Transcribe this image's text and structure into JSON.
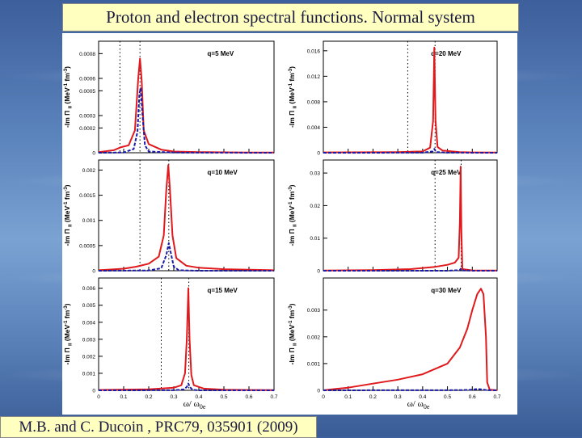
{
  "slide": {
    "title": "Proton and electron spectral functions. Normal system",
    "citation": "M.B. and C. Ducoin , PRC79, 035901 (2009)"
  },
  "colors": {
    "proton": "#e0191d",
    "electron": "#1a1aa6",
    "title_bg": "#ffffc0"
  },
  "chart_data": [
    {
      "type": "line",
      "label": "q=5 MeV",
      "xlim": [
        0,
        0.7
      ],
      "ylim": [
        0,
        0.0009
      ],
      "yticks": [
        0,
        0.0002,
        0.0003,
        0.0005,
        0.0006,
        0.0008
      ],
      "ytick_labels": [
        "0",
        "0.0002",
        "0.0003",
        "0.0005",
        "0.0006",
        "0.0008"
      ],
      "vlines": [
        0.085,
        0.165
      ],
      "ylabel": "-Im Π",
      "series": [
        {
          "name": "proton",
          "x": [
            0,
            0.06,
            0.09,
            0.12,
            0.145,
            0.158,
            0.165,
            0.172,
            0.18,
            0.2,
            0.25,
            0.3,
            0.4,
            0.5,
            0.6,
            0.7
          ],
          "y": [
            5e-06,
            2e-05,
            4.5e-05,
            6e-05,
            0.00018,
            0.0006,
            0.00076,
            0.00058,
            0.00018,
            7e-05,
            2.5e-05,
            1e-05,
            5e-06,
            3e-06,
            2e-06,
            1e-06
          ]
        },
        {
          "name": "electron",
          "x": [
            0,
            0.1,
            0.14,
            0.155,
            0.163,
            0.168,
            0.175,
            0.185,
            0.2,
            0.3,
            0.7
          ],
          "y": [
            0,
            2e-06,
            3e-05,
            0.00017,
            0.00048,
            0.00052,
            0.0003,
            6e-05,
            1e-05,
            1e-06,
            0
          ]
        }
      ]
    },
    {
      "type": "line",
      "label": "q=20 MeV",
      "xlim": [
        0,
        0.7
      ],
      "ylim": [
        0,
        0.0175
      ],
      "yticks": [
        0,
        0.004,
        0.008,
        0.012,
        0.016
      ],
      "ytick_labels": [
        "0",
        "0.004",
        "0.008",
        "0.012",
        "0.016"
      ],
      "vlines": [
        0.34,
        0.45
      ],
      "ylabel": "-Im Π",
      "series": [
        {
          "name": "proton",
          "x": [
            0,
            0.2,
            0.3,
            0.4,
            0.43,
            0.442,
            0.447,
            0.452,
            0.46,
            0.48,
            0.55,
            0.6,
            0.7
          ],
          "y": [
            5e-05,
            8e-05,
            0.0001,
            0.0002,
            0.0008,
            0.005,
            0.0165,
            0.005,
            0.0009,
            0.00035,
            0.0001,
            5e-05,
            2e-05
          ]
        },
        {
          "name": "electron",
          "x": [
            0,
            0.4,
            0.44,
            0.447,
            0.455,
            0.5,
            0.7
          ],
          "y": [
            0,
            1e-05,
            0.0002,
            0.0006,
            0.0001,
            1e-05,
            0
          ]
        }
      ]
    },
    {
      "type": "line",
      "label": "q=10 MeV",
      "xlim": [
        0,
        0.7
      ],
      "ylim": [
        0,
        0.0022
      ],
      "yticks": [
        0,
        0.0005,
        0.001,
        0.0015,
        0.002
      ],
      "ytick_labels": [
        "0",
        "0.0005",
        "0.001",
        "0.0015",
        "0.002"
      ],
      "vlines": [
        0.165,
        0.28
      ],
      "ylabel": "-Im Π",
      "series": [
        {
          "name": "proton",
          "x": [
            0,
            0.1,
            0.15,
            0.2,
            0.24,
            0.26,
            0.27,
            0.278,
            0.285,
            0.295,
            0.31,
            0.35,
            0.4,
            0.5,
            0.6,
            0.7
          ],
          "y": [
            1e-05,
            4e-05,
            8e-05,
            0.00014,
            0.00028,
            0.0007,
            0.0016,
            0.0021,
            0.0016,
            0.0007,
            0.00025,
            0.0001,
            6e-05,
            3e-05,
            2e-05,
            1e-05
          ]
        },
        {
          "name": "electron",
          "x": [
            0,
            0.2,
            0.25,
            0.27,
            0.28,
            0.29,
            0.3,
            0.32,
            0.4,
            0.7
          ],
          "y": [
            0,
            5e-06,
            5e-05,
            0.00031,
            0.00055,
            0.00031,
            8e-05,
            1e-05,
            0,
            0
          ]
        }
      ]
    },
    {
      "type": "line",
      "label": "q=25 MeV",
      "xlim": [
        0,
        0.7
      ],
      "ylim": [
        0,
        0.034
      ],
      "yticks": [
        0,
        0.01,
        0.02,
        0.03
      ],
      "ytick_labels": [
        "0",
        "0.01",
        "0.02",
        "0.03"
      ],
      "vlines": [
        0.45,
        0.555
      ],
      "ylabel": "-Im Π",
      "series": [
        {
          "name": "proton",
          "x": [
            0,
            0.2,
            0.35,
            0.45,
            0.5,
            0.53,
            0.545,
            0.55,
            0.553,
            0.556,
            0.56,
            0.6,
            0.7
          ],
          "y": [
            5e-05,
            0.0002,
            0.0005,
            0.0012,
            0.0018,
            0.0025,
            0.004,
            0.015,
            0.032,
            0.012,
            0.0005,
            0.0001,
            5e-05
          ]
        },
        {
          "name": "electron",
          "x": [
            0,
            0.5,
            0.55,
            0.553,
            0.556,
            0.6,
            0.7
          ],
          "y": [
            0,
            1e-05,
            0.0002,
            0.0006,
            0.0001,
            0,
            0
          ]
        }
      ]
    },
    {
      "type": "line",
      "label": "q=15 MeV",
      "xlim": [
        0,
        0.7
      ],
      "ylim": [
        0,
        0.0066
      ],
      "yticks": [
        0,
        0.001,
        0.002,
        0.003,
        0.004,
        0.005,
        0.006
      ],
      "ytick_labels": [
        "0",
        "0.001",
        "0.002",
        "0.003",
        "0.004",
        "0.005",
        "0.006"
      ],
      "vlines": [
        0.25,
        0.36
      ],
      "ylabel": "-Im Π",
      "series": [
        {
          "name": "proton",
          "x": [
            0,
            0.2,
            0.3,
            0.33,
            0.345,
            0.352,
            0.358,
            0.363,
            0.37,
            0.38,
            0.42,
            0.5,
            0.6,
            0.7
          ],
          "y": [
            2e-05,
            6e-05,
            0.00015,
            0.0003,
            0.001,
            0.003,
            0.006,
            0.003,
            0.0009,
            0.0003,
            0.0001,
            4e-05,
            2e-05,
            1e-05
          ]
        },
        {
          "name": "electron",
          "x": [
            0,
            0.3,
            0.34,
            0.352,
            0.358,
            0.364,
            0.375,
            0.4,
            0.7
          ],
          "y": [
            0,
            5e-06,
            5e-05,
            0.0002,
            0.0004,
            0.0002,
            3e-05,
            0,
            0
          ]
        }
      ]
    },
    {
      "type": "line",
      "label": "q=30 MeV",
      "xlim": [
        0,
        0.7
      ],
      "ylim": [
        0,
        0.0042
      ],
      "yticks": [
        0,
        0.001,
        0.002,
        0.003
      ],
      "ytick_labels": [
        "0",
        "0.001",
        "0.002",
        "0.003"
      ],
      "vlines": [],
      "ylabel": "-Im Π",
      "series": [
        {
          "name": "proton",
          "x": [
            0,
            0.05,
            0.1,
            0.2,
            0.3,
            0.4,
            0.5,
            0.55,
            0.58,
            0.6,
            0.62,
            0.635,
            0.645,
            0.655,
            0.66,
            0.67,
            0.7
          ],
          "y": [
            0,
            5e-05,
            0.0001,
            0.00025,
            0.0004,
            0.0006,
            0.001,
            0.0016,
            0.0023,
            0.003,
            0.0036,
            0.0038,
            0.0036,
            0.002,
            0.0003,
            2e-05,
            0
          ]
        },
        {
          "name": "electron",
          "x": [
            0,
            0.55,
            0.6,
            0.62,
            0.64,
            0.66,
            0.7
          ],
          "y": [
            0,
            5e-06,
            2e-05,
            5e-05,
            3e-05,
            5e-06,
            0
          ]
        }
      ]
    }
  ],
  "axes": {
    "xtick_labels": [
      "0",
      "0.1",
      "0.2",
      "0.3",
      "0.4",
      "0.5",
      "0.6",
      "0.7"
    ],
    "xticks": [
      0,
      0.1,
      0.2,
      0.3,
      0.4,
      0.5,
      0.6,
      0.7
    ],
    "xlabel": "ω/ ω",
    "xlabel_sub": "0e",
    "ylabel_units": "(MeV",
    "ylabel_tail": "fm",
    "ylabel_exp1": "-1",
    "ylabel_exp2": "-3",
    "ylabel_close": ")",
    "ylabel_sub": "ii"
  }
}
